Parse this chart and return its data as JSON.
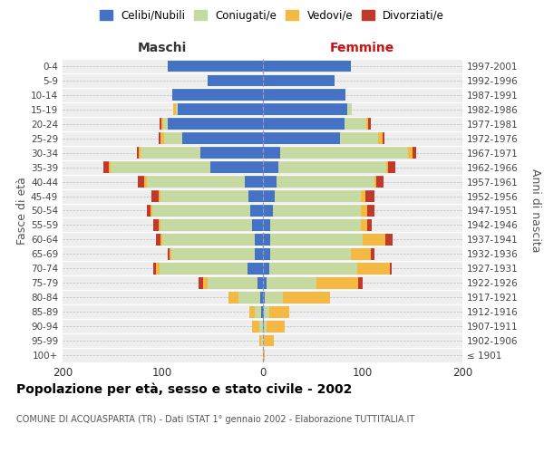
{
  "age_groups": [
    "100+",
    "95-99",
    "90-94",
    "85-89",
    "80-84",
    "75-79",
    "70-74",
    "65-69",
    "60-64",
    "55-59",
    "50-54",
    "45-49",
    "40-44",
    "35-39",
    "30-34",
    "25-29",
    "20-24",
    "15-19",
    "10-14",
    "5-9",
    "0-4"
  ],
  "birth_years": [
    "≤ 1901",
    "1902-1906",
    "1907-1911",
    "1912-1916",
    "1917-1921",
    "1922-1926",
    "1927-1931",
    "1932-1936",
    "1937-1941",
    "1942-1946",
    "1947-1951",
    "1952-1956",
    "1957-1961",
    "1962-1966",
    "1967-1971",
    "1972-1976",
    "1977-1981",
    "1982-1986",
    "1987-1991",
    "1992-1996",
    "1997-2001"
  ],
  "maschi": {
    "celibi": [
      0,
      0,
      0,
      1,
      2,
      5,
      15,
      8,
      8,
      10,
      12,
      14,
      18,
      52,
      62,
      80,
      95,
      85,
      90,
      55,
      95
    ],
    "coniugati": [
      0,
      1,
      3,
      7,
      22,
      50,
      88,
      83,
      92,
      92,
      98,
      88,
      98,
      100,
      60,
      18,
      4,
      2,
      0,
      0,
      0
    ],
    "vedovi": [
      0,
      2,
      7,
      5,
      10,
      4,
      4,
      2,
      2,
      2,
      2,
      2,
      2,
      2,
      2,
      4,
      2,
      2,
      0,
      0,
      0
    ],
    "divorziati": [
      0,
      0,
      0,
      0,
      0,
      5,
      2,
      2,
      5,
      5,
      4,
      7,
      7,
      5,
      2,
      2,
      2,
      0,
      0,
      0,
      0
    ]
  },
  "femmine": {
    "nubili": [
      0,
      0,
      1,
      1,
      2,
      4,
      7,
      8,
      8,
      8,
      10,
      12,
      14,
      16,
      18,
      78,
      82,
      85,
      83,
      72,
      88
    ],
    "coniugate": [
      0,
      1,
      3,
      6,
      18,
      50,
      88,
      80,
      92,
      90,
      88,
      86,
      98,
      108,
      128,
      38,
      22,
      4,
      0,
      0,
      0
    ],
    "vedove": [
      2,
      10,
      18,
      20,
      48,
      42,
      32,
      20,
      23,
      7,
      7,
      5,
      2,
      2,
      4,
      4,
      2,
      0,
      0,
      0,
      0
    ],
    "divorziate": [
      0,
      0,
      0,
      0,
      0,
      4,
      2,
      4,
      7,
      4,
      7,
      9,
      7,
      7,
      4,
      2,
      2,
      0,
      0,
      0,
      0
    ]
  },
  "colors": {
    "celibi": "#4472C4",
    "coniugati": "#C5D9A0",
    "vedovi": "#F4B942",
    "divorziati": "#C0392B"
  },
  "legend_labels": [
    "Celibi/Nubili",
    "Coniugati/e",
    "Vedovi/e",
    "Divorziati/e"
  ],
  "title": "Popolazione per età, sesso e stato civile - 2002",
  "subtitle": "COMUNE DI ACQUASPARTA (TR) - Dati ISTAT 1° gennaio 2002 - Elaborazione TUTTITALIA.IT",
  "xlabel_left": "Maschi",
  "xlabel_right": "Femmine",
  "ylabel_left": "Fasce di età",
  "ylabel_right": "Anni di nascita",
  "xlim": 200,
  "bg_color": "#ffffff",
  "plot_bg_color": "#eeeeee"
}
